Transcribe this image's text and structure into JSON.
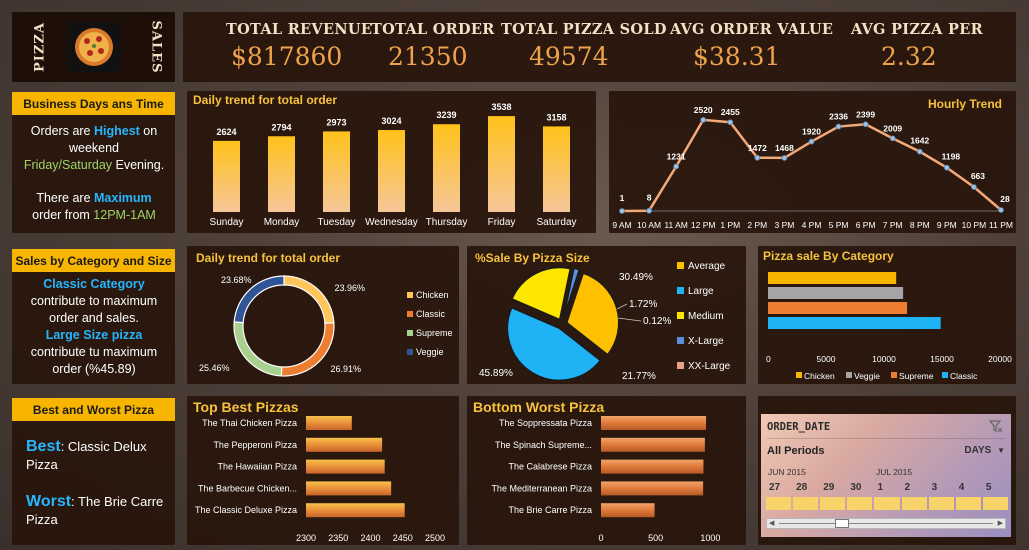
{
  "header": {
    "logo_left": "PIZZA",
    "logo_right": "SALES",
    "kpis": [
      {
        "title": "TOTAL REVENUE",
        "value": "$817860"
      },
      {
        "title": "TOTAL ORDER",
        "value": "21350"
      },
      {
        "title": "TOTAL PIZZA SOLD",
        "value": "49574"
      },
      {
        "title": "AVG ORDER VALUE",
        "value": "$38.31"
      },
      {
        "title": "AVG PIZZA PER",
        "value": "2.32"
      }
    ]
  },
  "insights": {
    "business": {
      "label": "Business Days ans Time",
      "t1": "Orders are ",
      "t1b": "Highest",
      "t1c": " on weekend",
      "t2": "Friday/Saturday",
      "t2b": " Evening.",
      "t3": "There are ",
      "t3b": "Maximum",
      "t4": "order from ",
      "t4b": "12PM-1AM"
    },
    "category": {
      "label": "Sales by Category and Size",
      "t1": "Classic Category",
      "t2": "contribute to maximum order and sales.",
      "t3": "Large Size pizza",
      "t4": "contribute tu maximum order (%45.89)"
    },
    "bestworst": {
      "label": "Best and Worst Pizza",
      "best_key": "Best",
      "best_val": ": Classic Delux Pizza",
      "worst_key": "Worst",
      "worst_val": ": The Brie Carre Pizza"
    }
  },
  "slicer": {
    "title": "ORDER_DATE",
    "periods": "All Periods",
    "unit": "DAYS",
    "month1": "JUN 2015",
    "month2": "JUL 2015",
    "days": [
      "27",
      "28",
      "29",
      "30",
      "1",
      "2",
      "3",
      "4",
      "5"
    ]
  },
  "colors": {
    "gold": "#f7b500",
    "orange": "#f0a24a",
    "panel": "#28160c",
    "blue": "#26b6ff"
  },
  "chart_data": [
    {
      "id": "daily",
      "type": "bar",
      "title": "Daily trend for total order",
      "categories": [
        "Sunday",
        "Monday",
        "Tuesday",
        "Wednesday",
        "Thursday",
        "Friday",
        "Saturday"
      ],
      "values": [
        2624,
        2794,
        2973,
        3024,
        3239,
        3538,
        3158
      ],
      "ylim": [
        0,
        3800
      ]
    },
    {
      "id": "hourly",
      "type": "line",
      "title": "Hourly Trend",
      "categories": [
        "9 AM",
        "10 AM",
        "11 AM",
        "12 PM",
        "1 PM",
        "2 PM",
        "3 PM",
        "4 PM",
        "5 PM",
        "6 PM",
        "7 PM",
        "8 PM",
        "9 PM",
        "10 PM",
        "11 PM"
      ],
      "values": [
        1,
        8,
        1231,
        2520,
        2455,
        1472,
        1468,
        1920,
        2336,
        2399,
        2009,
        1642,
        1198,
        663,
        28
      ],
      "ylim": [
        0,
        2600
      ]
    },
    {
      "id": "donut",
      "type": "pie",
      "title": "Daily trend for total order",
      "categories": [
        "Chicken",
        "Classic",
        "Supreme",
        "Veggie"
      ],
      "values": [
        23.96,
        26.91,
        25.46,
        23.68
      ],
      "labels": [
        "23.96%",
        "26.91%",
        "25.46%",
        "23.68%"
      ],
      "colors": [
        "#ffc65c",
        "#ed7d31",
        "#a9d18e",
        "#2f5597"
      ]
    },
    {
      "id": "size",
      "type": "pie",
      "title": "%Sale By Pizza Size",
      "categories": [
        "Average",
        "Large",
        "Medium",
        "X-Large",
        "XX-Large"
      ],
      "values": [
        30.49,
        45.89,
        21.77,
        1.72,
        0.12
      ],
      "labels": [
        "30.49%",
        "45.89%",
        "21.77%",
        "1.72%",
        "0.12%"
      ],
      "colors": [
        "#ffc000",
        "#1fb2f5",
        "#ffe600",
        "#5b8fd6",
        "#e8a087"
      ]
    },
    {
      "id": "category",
      "type": "bar",
      "title": "Pizza sale By Category",
      "categories": [
        "Classic",
        "Supreme",
        "Veggie",
        "Chicken"
      ],
      "values": [
        14888,
        11987,
        11649,
        11050
      ],
      "xticks": [
        "0",
        "5000",
        "10000",
        "15000",
        "20000"
      ],
      "xlim": [
        0,
        20000
      ],
      "legend": [
        "Chicken",
        "Veggie",
        "Supreme",
        "Classic"
      ],
      "colors": [
        "#1fb2f5",
        "#ed7d31",
        "#a5a5a5",
        "#f7b500"
      ]
    },
    {
      "id": "best",
      "type": "bar",
      "title": "Top Best Pizzas",
      "categories": [
        "The Thai Chicken Pizza",
        "The Pepperoni Pizza",
        "The Hawaiian Pizza",
        "The Barbecue Chicken...",
        "The Classic Deluxe Pizza"
      ],
      "values": [
        2371,
        2418,
        2422,
        2432,
        2453
      ],
      "xticks": [
        "2300",
        "2350",
        "2400",
        "2450",
        "2500"
      ],
      "xlim": [
        2300,
        2500
      ]
    },
    {
      "id": "worst",
      "type": "bar",
      "title": "Bottom Worst Pizza",
      "categories": [
        "The Soppressata Pizza",
        "The Spinach Supreme...",
        "The Calabrese Pizza",
        "The Mediterranean Pizza",
        "The Brie Carre Pizza"
      ],
      "values": [
        961,
        950,
        937,
        934,
        490
      ],
      "xticks": [
        "0",
        "500",
        "1000",
        "1500"
      ],
      "xlim": [
        0,
        1500
      ]
    }
  ]
}
